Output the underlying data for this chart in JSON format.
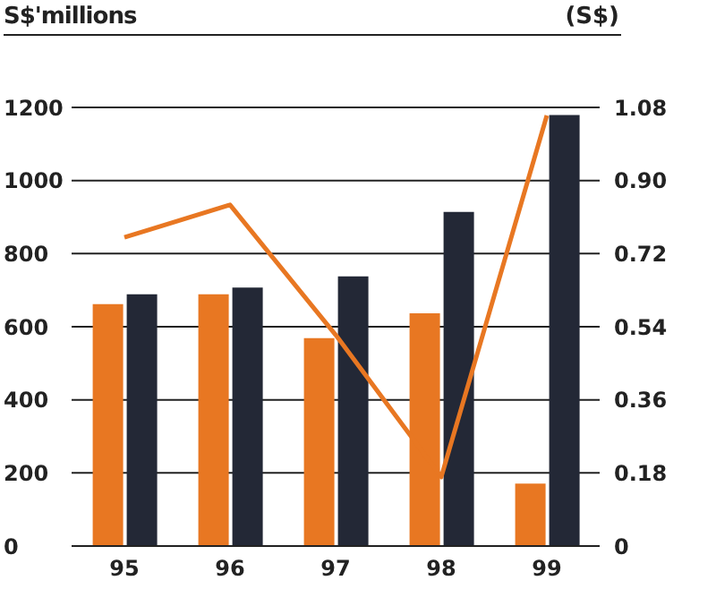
{
  "chart_data": {
    "type": "bar",
    "ylabel": "S$'millions",
    "y2label": "(S$)",
    "categories": [
      "95",
      "96",
      "97",
      "98",
      "99"
    ],
    "series": [
      {
        "color": "#e87722",
        "values": [
          662,
          689,
          569,
          637,
          171
        ]
      },
      {
        "color": "#232836",
        "values": [
          689,
          707,
          738,
          914,
          1179
        ]
      },
      {
        "type": "line",
        "axis": "y2",
        "color": "#e87722",
        "values": [
          0.76,
          0.84,
          0.52,
          0.17,
          1.06
        ]
      }
    ],
    "ylim": [
      0,
      1200
    ],
    "yticks": [
      0,
      200,
      400,
      600,
      800,
      1000,
      1200
    ],
    "y2lim": [
      0,
      1.08
    ],
    "y2ticks": [
      {
        "value": 0,
        "label": "0"
      },
      0.18,
      0.36,
      0.54,
      0.72,
      {
        "value": 0.9,
        "label": "0.90"
      },
      1.08
    ],
    "grid": "y",
    "legend": false,
    "marker": "none",
    "line_style": "solid"
  }
}
